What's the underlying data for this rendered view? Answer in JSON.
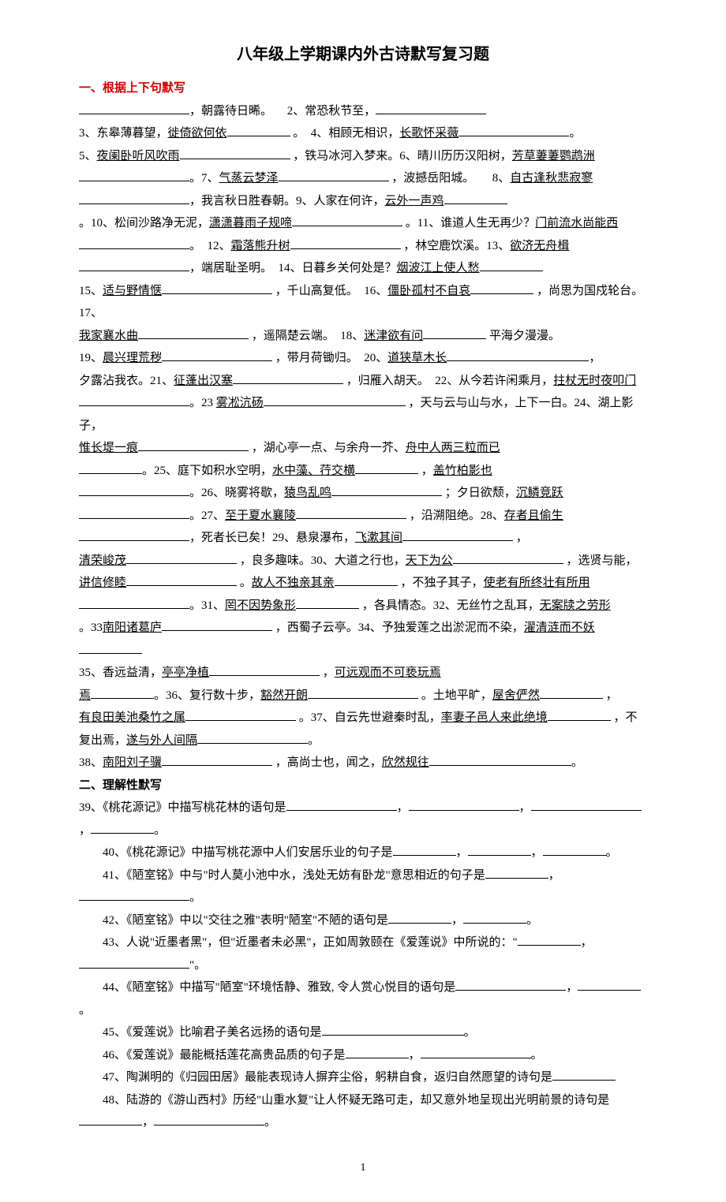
{
  "title": "八年级上学期课内外古诗默写复习题",
  "section1": {
    "heading": "一、根据上下句默写",
    "q1a": "，朝露待日晞。",
    "q1n": "2、常恐秋节至，",
    "q3": "3、东皋薄暮望，",
    "q3u": "徙倚欲何依",
    "q4": "。　4、相顾无相识，",
    "q4u": "长歌怀采薇",
    "q5n": "5、",
    "q5u": "夜阑卧听风吹雨",
    "q5b": "，铁马冰河入梦来。6、晴川历历汉阳树，",
    "q6u": "芳草萋萋鹦鹉洲",
    "q7": "。7、",
    "q7u": "气蒸云梦泽",
    "q7b": "，波撼岳阳城。　　8、",
    "q8u": "自古逢秋悲寂寥",
    "q8b": "，我言秋日胜春朝。9、人家在何许，",
    "q9u": "云外一声鸡",
    "q10": "。10、松间沙路净无泥，",
    "q10u": "潇潇暮雨子规啼",
    "q11": "。11、谁道人生无再少？",
    "q11u": "门前流水尚能西",
    "q12": "。　12、",
    "q12u": "霜落熊升树",
    "q12b": "，林空鹿饮溪。13、",
    "q13u": "欲济无舟楫",
    "q13b": "，端居耻圣明。　14、日暮乡关何处是？",
    "q14u": "烟波江上使人愁",
    "q15": "15、",
    "q15u": "适与野情惬",
    "q15b": "，千山高复低。　16、",
    "q16u": "僵卧孤村不自哀",
    "q16b": "，尚思为国戍轮台。17、",
    "q17u": "我家襄水曲",
    "q17b": "，遥隔楚云端。　18、",
    "q18u": "迷津欲有问",
    "q18b": "平海夕漫漫。",
    "q19": "19、",
    "q19u": "晨兴理荒秽",
    "q19b": "，带月荷锄归。　20、",
    "q20u": "道狭草木长",
    "q20c": "夕露沾我衣。21、",
    "q21u": "征蓬出汉塞",
    "q21b": "，归雁入胡天。　22、从今若许闲乘月，",
    "q22u": "拄杖无时夜叩门",
    "q23": "。23",
    "q23u": "雾凇沆砀",
    "q23b": "，天与云与山与水，上下一白。24、湖上影子，",
    "q24u": "惟长堤一痕",
    "q24b": "，湖心亭一点、与余舟一芥、",
    "q24u2": "舟中人两三粒而已",
    "q25": "。25、庭下如积水空明，",
    "q25u": "水中藻、荇交横",
    "q25b": "，",
    "q25u2": "盖竹柏影也",
    "q26": "。26、晓雾将歇，",
    "q26u": "猿鸟乱鸣",
    "q26b": "；夕日欲颓，",
    "q26u2": "沉鳞竞跃",
    "q27": "。27、",
    "q27u": "至于夏水襄陵",
    "q27b": "，沿溯阻绝。28、",
    "q28u": "存者且偷生",
    "q28b": "，死者长已矣！29、悬泉瀑布，",
    "q29u": "飞漱其间",
    "q29b": "，",
    "q30u": "清荣峻茂",
    "q30b": "，良多趣味。30、大道之行也，",
    "q30u2": "天下为公",
    "q30c": "，选贤与能，",
    "q30u3": "讲信修睦",
    "q30d": "。",
    "q30u4": "故人不独亲其亲",
    "q30e": "，不独子其子，",
    "q30u5": "使老有所终壮有所用",
    "q31": "。31、",
    "q31u": "罔不因势象形",
    "q31b": "，各具情态。32、无丝竹之乱耳，",
    "q32u": "无案牍之劳形",
    "q33": "。33",
    "q33u": "南阳诸葛庐",
    "q33b": "，西蜀子云亭。34、予独爱莲之出淤泥而不染，",
    "q34u": "濯清涟而不妖",
    "q35": "35、香远益清，",
    "q35u": "亭亭净植",
    "q35b": "，",
    "q35u2": "可远观而不可亵玩焉",
    "q36": "。36、复行数十步，",
    "q36u": "豁然开朗",
    "q36b": "。土地平旷，",
    "q36u2": "屋舍俨然",
    "q36c": "，",
    "q37u": "有良田美池桑竹之属",
    "q37": "。37、自云先世避秦时乱，",
    "q37u2": "率妻子邑人来此绝境",
    "q37b": "，不复出焉，",
    "q37u3": "遂与外人间隔",
    "q38": "38、",
    "q38u": "南阳刘子骥",
    "q38b": "，高尚士也，闻之，",
    "q38u2": "欣然规往"
  },
  "section2": {
    "heading": "二、理解性默写",
    "q39": "39、《桃花源记》中描写桃花林的语句是",
    "q40": "40、《桃花源记》中描写桃花源中人们安居乐业的句子是",
    "q41": "41、《陋室铭》中与\"时人莫小池中水，浅处无妨有卧龙\"意思相近的句子是",
    "q42": "42、《陋室铭》中以\"交往之雅\"表明\"陋室\"不陋的语句是",
    "q43": "43、人说\"近墨者黑\"，但\"近墨者未必黑\"，正如周敦颐在《爱莲说》中所说的：\"",
    "q44": "44、《陋室铭》中描写\"陋室\"环境恬静、雅致, 令人赏心悦目的语句是",
    "q45": "45、《爱莲说》比喻君子美名远扬的语句是",
    "q46": "46、《爱莲说》最能概括莲花高贵品质的句子是",
    "q47": "47、陶渊明的《归园田居》最能表现诗人摒弃尘俗，躬耕自食，返归自然愿望的诗句是",
    "q48": "48、陆游的《游山西村》历经\"山重水复\"让人怀疑无路可走，却又意外地呈现出光明前景的诗句是"
  },
  "pageNum": "1"
}
